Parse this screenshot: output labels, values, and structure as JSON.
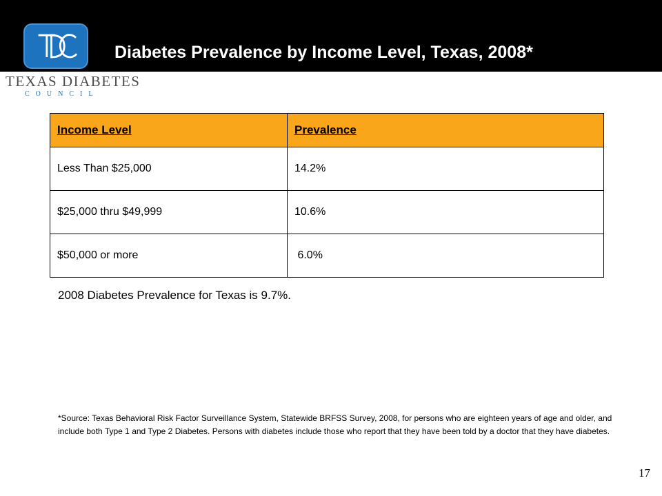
{
  "slide": {
    "title": "Diabetes Prevalence by Income Level, Texas, 2008*",
    "page_number": "17"
  },
  "logo": {
    "monogram": "TDC",
    "wordmark": "TEXAS DIABETES",
    "subword": "COUNCIL",
    "color": "#1e73be"
  },
  "table": {
    "headers": [
      "Income Level",
      "Prevalence"
    ],
    "header_color": "#f9a61a",
    "rows": [
      [
        "Less Than $25,000",
        "14.2%"
      ],
      [
        "$25,000 thru $49,999",
        "10.6%"
      ],
      [
        "$50,000 or more",
        " 6.0%"
      ]
    ]
  },
  "summary": "2008 Diabetes Prevalence for Texas is 9.7%.",
  "footnote": "*Source:  Texas Behavioral Risk Factor Surveillance System, Statewide BRFSS Survey, 2008,  for persons who are eighteen years of age and older, and include both Type 1  and Type 2 Diabetes.  Persons with diabetes include those who report that they have been told by a doctor that they have diabetes."
}
